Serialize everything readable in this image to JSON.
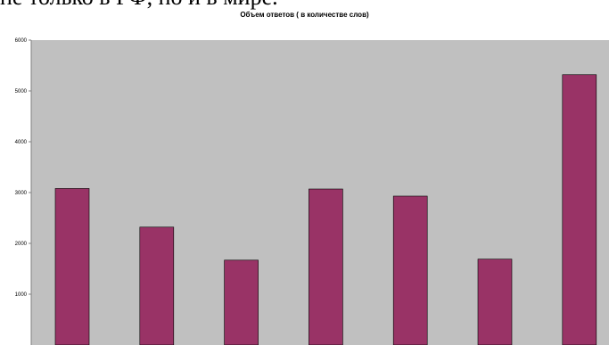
{
  "header": {
    "visible_text": "не только в РФ, но и в мире."
  },
  "chart_data": {
    "type": "bar",
    "title": "Объем ответов ( в количестве слов)",
    "xlabel": "",
    "ylabel": "",
    "ylim": [
      0,
      6000
    ],
    "yticks": [
      "1000",
      "2000",
      "3000",
      "4000",
      "5000",
      "6000"
    ],
    "grid": false,
    "legend": "none",
    "categories": [
      "",
      "",
      "",
      "",
      "",
      "",
      ""
    ],
    "values": [
      3080,
      2320,
      1670,
      3070,
      2930,
      1690,
      5320
    ],
    "colors": {
      "bar": "#993366",
      "plot_background": "#c0c0c0",
      "axis": "#808080"
    }
  }
}
